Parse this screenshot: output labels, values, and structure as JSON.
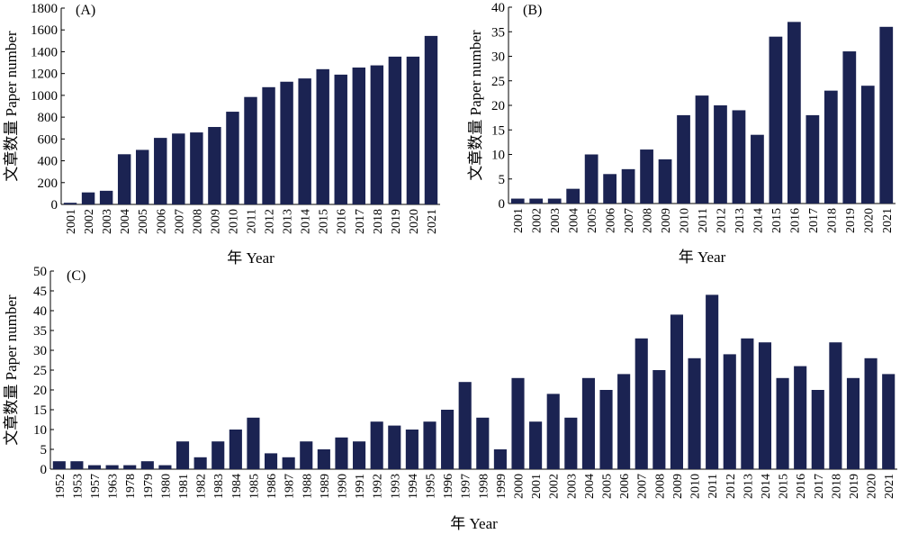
{
  "bar_color": "#1b2352",
  "chart_data": [
    {
      "type": "bar",
      "panel_label": "(A)",
      "xlabel": "年 Year",
      "ylabel": "文章数量 Paper number",
      "ylim": [
        0,
        1800
      ],
      "yticks": [
        0,
        200,
        400,
        600,
        800,
        1000,
        1200,
        1400,
        1600,
        1800
      ],
      "categories": [
        "2001",
        "2002",
        "2003",
        "2004",
        "2005",
        "2006",
        "2007",
        "2008",
        "2009",
        "2010",
        "2011",
        "2012",
        "2013",
        "2014",
        "2015",
        "2016",
        "2017",
        "2018",
        "2019",
        "2020",
        "2021"
      ],
      "values": [
        15,
        110,
        125,
        460,
        500,
        610,
        650,
        660,
        710,
        850,
        985,
        1075,
        1125,
        1155,
        1240,
        1190,
        1255,
        1275,
        1355,
        1355,
        1545
      ],
      "grid": false
    },
    {
      "type": "bar",
      "panel_label": "(B)",
      "xlabel": "年 Year",
      "ylabel": "文章数量 Paper number",
      "ylim": [
        0,
        40
      ],
      "yticks": [
        0,
        5,
        10,
        15,
        20,
        25,
        30,
        35,
        40
      ],
      "categories": [
        "2001",
        "2002",
        "2003",
        "2004",
        "2005",
        "2006",
        "2007",
        "2008",
        "2009",
        "2010",
        "2011",
        "2012",
        "2013",
        "2014",
        "2015",
        "2016",
        "2017",
        "2018",
        "2019",
        "2020",
        "2021"
      ],
      "values": [
        1,
        1,
        1,
        3,
        10,
        6,
        7,
        11,
        9,
        18,
        22,
        20,
        19,
        14,
        34,
        37,
        18,
        23,
        31,
        24,
        36
      ],
      "grid": false
    },
    {
      "type": "bar",
      "panel_label": "(C)",
      "xlabel": "年 Year",
      "ylabel": "文章数量 Paper number",
      "ylim": [
        0,
        50
      ],
      "yticks": [
        0,
        5,
        10,
        15,
        20,
        25,
        30,
        35,
        40,
        45,
        50
      ],
      "categories": [
        "1952",
        "1953",
        "1957",
        "1963",
        "1978",
        "1979",
        "1980",
        "1981",
        "1982",
        "1983",
        "1984",
        "1985",
        "1986",
        "1987",
        "1988",
        "1989",
        "1990",
        "1991",
        "1992",
        "1993",
        "1994",
        "1995",
        "1996",
        "1997",
        "1998",
        "1999",
        "2000",
        "2001",
        "2002",
        "2003",
        "2004",
        "2005",
        "2006",
        "2007",
        "2008",
        "2009",
        "2010",
        "2011",
        "2012",
        "2013",
        "2014",
        "2015",
        "2016",
        "2017",
        "2018",
        "2019",
        "2020",
        "2021"
      ],
      "values": [
        2,
        2,
        1,
        1,
        1,
        2,
        1,
        7,
        3,
        7,
        10,
        13,
        4,
        3,
        7,
        5,
        8,
        7,
        12,
        11,
        10,
        12,
        15,
        22,
        13,
        5,
        23,
        12,
        19,
        13,
        23,
        20,
        24,
        33,
        25,
        39,
        28,
        44,
        29,
        33,
        32,
        23,
        26,
        20,
        32,
        23,
        28,
        24
      ],
      "grid": false
    }
  ]
}
